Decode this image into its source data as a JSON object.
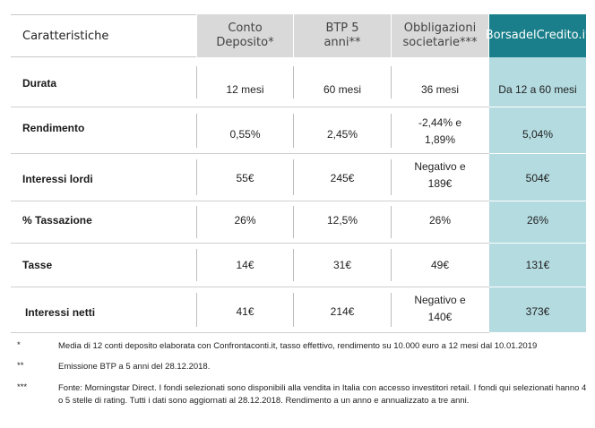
{
  "header": {
    "label": "Caratteristiche",
    "col1": "Conto Deposito*",
    "col2": "BTP 5 anni**",
    "col3": "Obbligazioni societarie***",
    "col4": "BorsadelCredito.it"
  },
  "rows": [
    {
      "label": "Durata",
      "c1": "12 mesi",
      "c2": "60 mesi",
      "c3": "36 mesi",
      "c4": "Da 12 a 60 mesi"
    },
    {
      "label": "Rendimento",
      "c1": "0,55%",
      "c2": "2,45%",
      "c3": "-2,44% e 1,89%",
      "c4": "5,04%"
    },
    {
      "label": "Interessi lordi",
      "c1": "55€",
      "c2": "245€",
      "c3": "Negativo e 189€",
      "c4": "504€"
    },
    {
      "label": "% Tassazione",
      "c1": "26%",
      "c2": "12,5%",
      "c3": "26%",
      "c4": "26%"
    },
    {
      "label": "Tasse",
      "c1": "14€",
      "c2": "31€",
      "c3": "49€",
      "c4": "131€"
    },
    {
      "label": "Interessi netti",
      "c1": "41€",
      "c2": "214€",
      "c3": "Negativo e 140€",
      "c4": "373€"
    }
  ],
  "notes": [
    {
      "mark": "*",
      "text": "Media di 12 conti deposito elaborata con Confrontaconti.it, tasso effettivo, rendimento su 10.000 euro a 12 mesi dal 10.01.2019"
    },
    {
      "mark": "**",
      "text": "Emissione BTP a 5 anni del 28.12.2018."
    },
    {
      "mark": "***",
      "text": "Fonte: Morningstar Direct. I fondi selezionati sono disponibili alla vendita in Italia con accesso investitori retail. I fondi qui selezionati hanno 4 o 5 stelle di rating. Tutti i dati sono aggiornati al 28.12.2018. Rendimento a un anno e annualizzato a tre anni."
    }
  ],
  "colors": {
    "highlight_header": "#1a7f8a",
    "highlight_column": "#b3dbe0",
    "header_grey": "#d9d9d9"
  }
}
